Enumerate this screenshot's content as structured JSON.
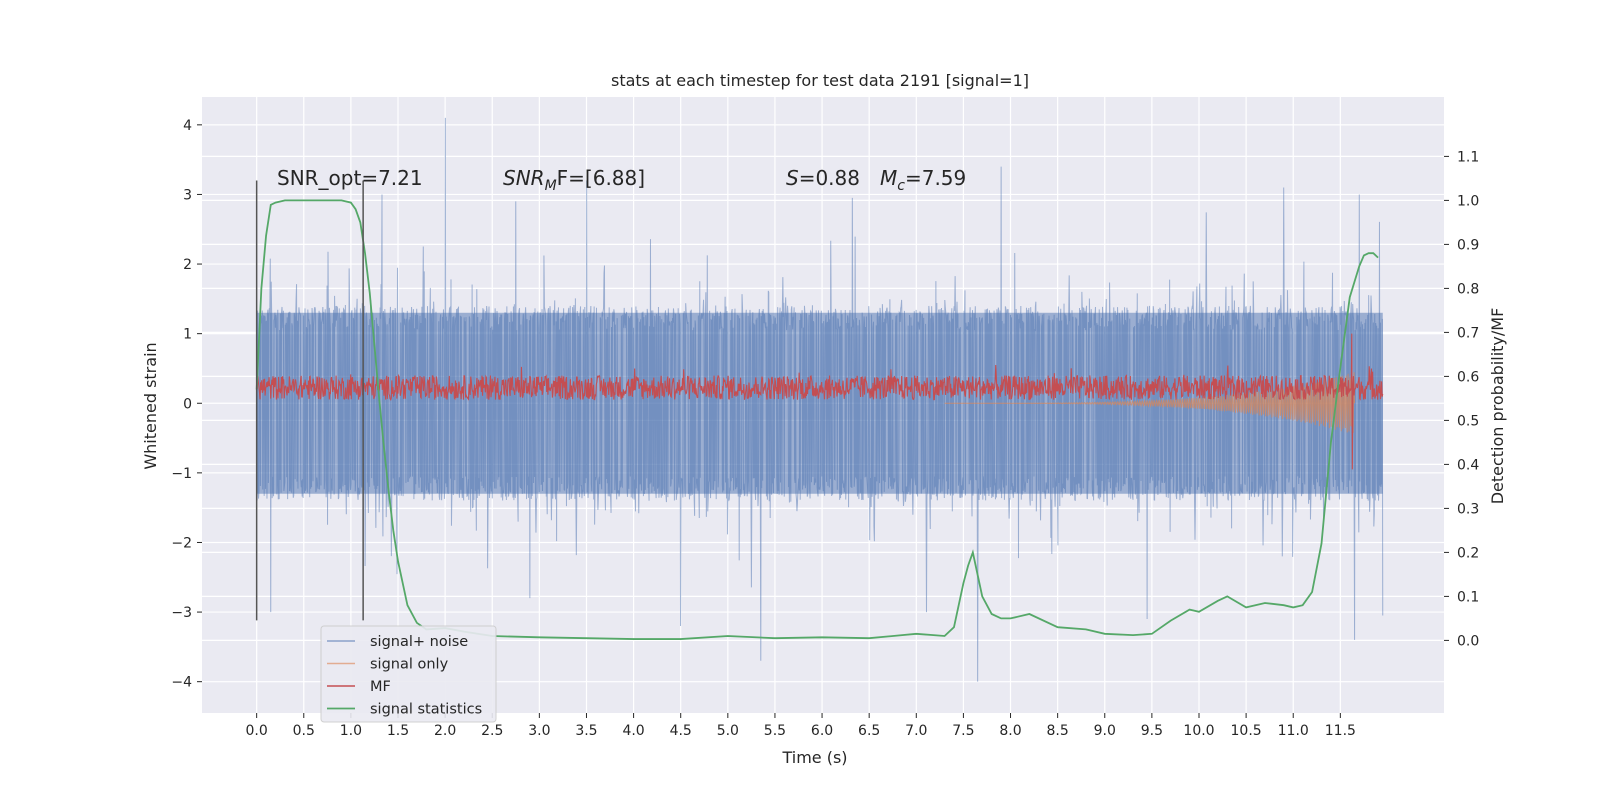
{
  "chart_data": {
    "type": "line",
    "title": "stats at each timestep for test data 2191 [signal=1]",
    "xlabel": "Time (s)",
    "ylabel": "Whitened strain",
    "y2label": "Detection probability/MF",
    "xlim": [
      -0.58,
      12.6
    ],
    "ylim": [
      -4.45,
      4.4
    ],
    "y2lim": [
      -0.165,
      1.235
    ],
    "x_ticks": [
      0.0,
      0.5,
      1.0,
      1.5,
      2.0,
      2.5,
      3.0,
      3.5,
      4.0,
      4.5,
      5.0,
      5.5,
      6.0,
      6.5,
      7.0,
      7.5,
      8.0,
      8.5,
      9.0,
      9.5,
      10.0,
      10.5,
      11.0,
      11.5
    ],
    "x_tick_labels": [
      "0.0",
      "0.5",
      "1.0",
      "1.5",
      "2.0",
      "2.5",
      "3.0",
      "3.5",
      "4.0",
      "4.5",
      "5.0",
      "5.5",
      "6.0",
      "6.5",
      "7.0",
      "7.5",
      "8.0",
      "8.5",
      "9.0",
      "9.5",
      "10.0",
      "10.5",
      "11.0",
      "11.5"
    ],
    "y_ticks": [
      4,
      3,
      2,
      1,
      0,
      -1,
      -2,
      -3,
      -4
    ],
    "y_tick_labels": [
      "4",
      "3",
      "2",
      "1",
      "0",
      "−1",
      "−2",
      "−3",
      "−4"
    ],
    "y2_ticks": [
      1.1,
      1.0,
      0.9,
      0.8,
      0.7,
      0.6,
      0.5,
      0.4,
      0.3,
      0.2,
      0.1,
      0.0
    ],
    "y2_tick_labels": [
      "1.1",
      "1.0",
      "0.9",
      "0.8",
      "0.7",
      "0.6",
      "0.5",
      "0.4",
      "0.3",
      "0.2",
      "0.1",
      "0.0"
    ],
    "grid": true,
    "legend_position": "lower-left",
    "annotations": {
      "snr_opt": "SNR_opt=7.21",
      "snr_mf_label": "SNR",
      "snr_mf_sub": "M",
      "snr_mf_rest": "F=[6.88]",
      "s_label": "S",
      "s_rest": "=0.88",
      "mc_label": "M",
      "mc_sub": "c",
      "mc_rest": "=7.59"
    },
    "window_markers_x": [
      0.0,
      1.13
    ],
    "series": [
      {
        "name": "signal+ noise",
        "color": "#4c72b0",
        "axis": "left",
        "x_range": [
          0.0,
          11.95
        ],
        "envelope_core": 1.3,
        "envelope_peak": 2.4,
        "spikes": [
          [
            2.0,
            4.1
          ],
          [
            3.5,
            3.2
          ],
          [
            1.33,
            3.0
          ],
          [
            7.9,
            3.4
          ],
          [
            10.9,
            3.1
          ],
          [
            11.7,
            3.0
          ],
          [
            2.75,
            2.9
          ],
          [
            6.32,
            2.95
          ],
          [
            5.35,
            -3.7
          ],
          [
            7.65,
            -4.0
          ],
          [
            4.5,
            -3.2
          ],
          [
            11.65,
            -3.4
          ],
          [
            2.9,
            -2.8
          ],
          [
            9.45,
            -3.1
          ],
          [
            0.15,
            -3.0
          ],
          [
            11.95,
            -3.05
          ]
        ]
      },
      {
        "name": "signal only",
        "color": "#dd8452",
        "axis": "left",
        "x_range": [
          7.3,
          11.65
        ],
        "peak_amplitude": 0.45
      },
      {
        "name": "MF",
        "color": "#c44e52",
        "axis": "left",
        "x_range": [
          0.0,
          11.95
        ],
        "baseline": 0.05,
        "amplitude": 0.35,
        "peak": [
          11.62,
          1.0
        ]
      },
      {
        "name": "signal statistics",
        "color": "#55a868",
        "axis": "right",
        "x": [
          0.0,
          0.05,
          0.1,
          0.15,
          0.2,
          0.3,
          0.5,
          0.7,
          0.9,
          1.0,
          1.05,
          1.1,
          1.15,
          1.2,
          1.25,
          1.3,
          1.35,
          1.4,
          1.45,
          1.5,
          1.6,
          1.7,
          1.8,
          2.0,
          2.2,
          2.5,
          3.0,
          3.5,
          4.0,
          4.5,
          5.0,
          5.5,
          6.0,
          6.5,
          7.0,
          7.3,
          7.4,
          7.5,
          7.55,
          7.6,
          7.7,
          7.8,
          7.9,
          8.0,
          8.2,
          8.5,
          8.8,
          9.0,
          9.3,
          9.5,
          9.7,
          9.9,
          10.0,
          10.2,
          10.3,
          10.5,
          10.7,
          10.9,
          11.0,
          11.1,
          11.2,
          11.3,
          11.4,
          11.5,
          11.6,
          11.7,
          11.75,
          11.8,
          11.85,
          11.9
        ],
        "y": [
          0.57,
          0.8,
          0.92,
          0.99,
          0.995,
          1.0,
          1.0,
          1.0,
          1.0,
          0.995,
          0.98,
          0.95,
          0.88,
          0.79,
          0.67,
          0.55,
          0.44,
          0.34,
          0.25,
          0.18,
          0.08,
          0.04,
          0.025,
          0.028,
          0.02,
          0.01,
          0.007,
          0.005,
          0.003,
          0.003,
          0.01,
          0.005,
          0.007,
          0.005,
          0.015,
          0.01,
          0.03,
          0.13,
          0.17,
          0.2,
          0.1,
          0.06,
          0.05,
          0.05,
          0.06,
          0.03,
          0.025,
          0.015,
          0.012,
          0.015,
          0.045,
          0.07,
          0.065,
          0.09,
          0.1,
          0.075,
          0.085,
          0.08,
          0.075,
          0.08,
          0.11,
          0.22,
          0.45,
          0.62,
          0.78,
          0.85,
          0.875,
          0.88,
          0.88,
          0.87
        ]
      }
    ]
  }
}
